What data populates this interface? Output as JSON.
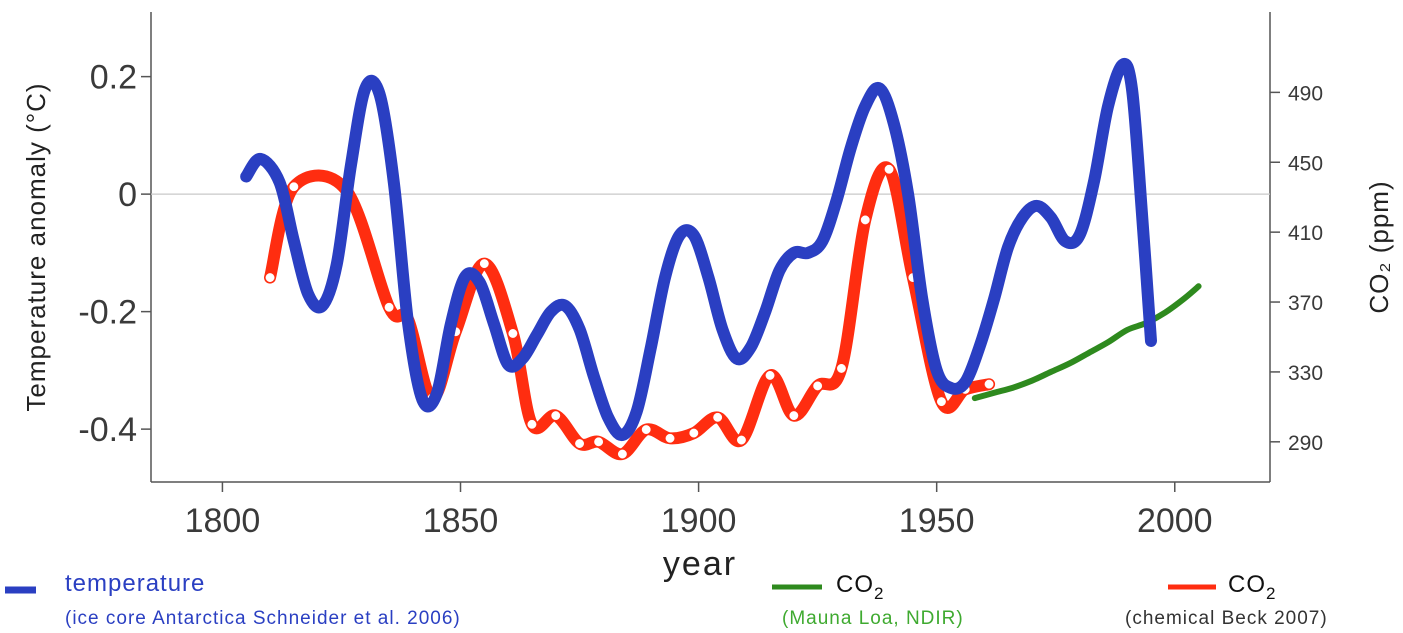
{
  "chart_data": {
    "type": "line",
    "title": "",
    "xlabel": "year",
    "ylabel_left": "Temperature anomaly (°C)",
    "ylabel_right": "CO₂ (ppm)",
    "xlim": [
      1785,
      2020
    ],
    "ylim_left": [
      -0.49,
      0.31
    ],
    "ylim_right": [
      267,
      536
    ],
    "x_ticks": [
      1800,
      1850,
      1900,
      1950,
      2000
    ],
    "y_ticks_left": [
      0.2,
      0,
      -0.2,
      -0.4
    ],
    "y_tick_labels_left": [
      "0.2",
      "0",
      "-0.2",
      "-0.4"
    ],
    "y_ticks_right": [
      490,
      450,
      410,
      370,
      330,
      290
    ],
    "zero_line": true,
    "grid": false,
    "legend_placement": "bottom",
    "series": [
      {
        "name": "temperature",
        "note": "(ice core Antarctica Schneider et al. 2006)",
        "axis": "left",
        "color": "#2a3fc2",
        "x": [
          1805,
          1808,
          1812,
          1815,
          1818,
          1821,
          1824,
          1827,
          1830,
          1833,
          1836,
          1839,
          1842,
          1845,
          1848,
          1851,
          1854,
          1857,
          1860,
          1863,
          1866,
          1869,
          1872,
          1875,
          1878,
          1881,
          1884,
          1887,
          1890,
          1893,
          1896,
          1899,
          1902,
          1905,
          1908,
          1911,
          1914,
          1917,
          1920,
          1923,
          1926,
          1929,
          1932,
          1935,
          1938,
          1941,
          1944,
          1947,
          1950,
          1953,
          1956,
          1959,
          1962,
          1965,
          1968,
          1971,
          1974,
          1977,
          1980,
          1983,
          1986,
          1989,
          1991,
          1993,
          1995
        ],
        "y": [
          0.03,
          0.06,
          0.02,
          -0.08,
          -0.17,
          -0.19,
          -0.12,
          0.05,
          0.18,
          0.17,
          0.02,
          -0.22,
          -0.35,
          -0.34,
          -0.22,
          -0.14,
          -0.15,
          -0.22,
          -0.29,
          -0.28,
          -0.24,
          -0.2,
          -0.19,
          -0.23,
          -0.31,
          -0.38,
          -0.41,
          -0.37,
          -0.26,
          -0.14,
          -0.07,
          -0.07,
          -0.14,
          -0.23,
          -0.28,
          -0.26,
          -0.2,
          -0.13,
          -0.1,
          -0.1,
          -0.08,
          -0.01,
          0.08,
          0.15,
          0.18,
          0.12,
          0.0,
          -0.18,
          -0.3,
          -0.33,
          -0.32,
          -0.26,
          -0.18,
          -0.09,
          -0.04,
          -0.02,
          -0.04,
          -0.08,
          -0.07,
          0.02,
          0.15,
          0.22,
          0.18,
          -0.02,
          -0.25
        ]
      },
      {
        "name": "CO₂",
        "note": "(Mauna Loa, NDIR)",
        "axis": "right",
        "color": "#2e8a1e",
        "x": [
          1958,
          1962,
          1966,
          1970,
          1974,
          1978,
          1982,
          1986,
          1990,
          1994,
          1998,
          2002,
          2005
        ],
        "y": [
          315,
          318,
          321,
          325,
          330,
          335,
          341,
          347,
          354,
          358,
          364,
          372,
          379
        ]
      },
      {
        "name": "CO₂",
        "note": "(chemical Beck 2007)",
        "axis": "right",
        "color": "#ff2d10",
        "x": [
          1810,
          1815,
          1826,
          1835,
          1839,
          1844,
          1849,
          1855,
          1861,
          1865,
          1870,
          1875,
          1879,
          1884,
          1889,
          1894,
          1899,
          1904,
          1909,
          1915,
          1920,
          1925,
          1930,
          1935,
          1940,
          1945,
          1951,
          1956,
          1961
        ],
        "y": [
          384,
          436,
          434,
          367,
          360,
          315,
          353,
          392,
          352,
          300,
          305,
          289,
          290,
          283,
          297,
          292,
          295,
          304,
          291,
          328,
          305,
          322,
          332,
          417,
          446,
          384,
          313,
          320,
          323
        ],
        "markers": true
      }
    ]
  },
  "legend": [
    {
      "label_main": "temperature",
      "label_sub": "(ice core Antarctica Schneider et al. 2006)",
      "color": "#2a3fc2",
      "main_color": "#2a3fc2",
      "sub_color": "#2a3fc2"
    },
    {
      "label_main": "CO",
      "label_main_sub": "2",
      "label_sub": "(Mauna Loa, NDIR)",
      "color": "#2e8a1e",
      "main_color": "#111111",
      "sub_color": "#3faa30"
    },
    {
      "label_main": "CO",
      "label_main_sub": "2",
      "label_sub": "(chemical Beck 2007)",
      "color": "#ff2d10",
      "main_color": "#111111",
      "sub_color": "#333333"
    }
  ]
}
